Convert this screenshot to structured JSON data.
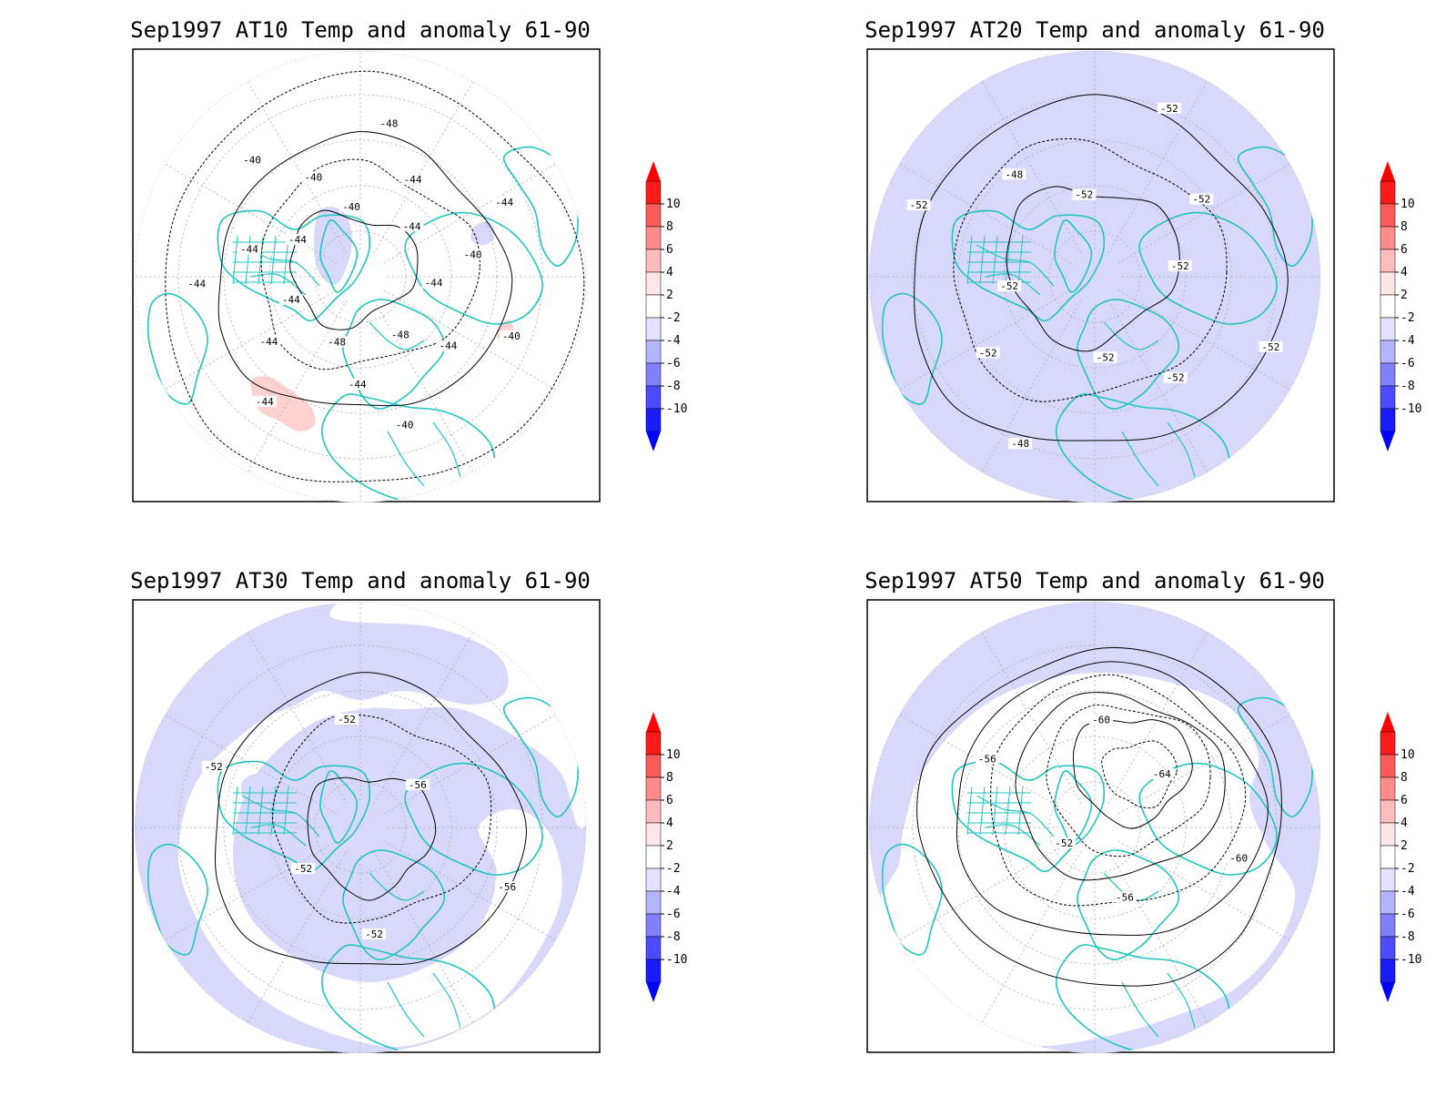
{
  "panels": [
    {
      "title": "Sep1997 AT10 Temp and anomaly 61-90",
      "contour_labels": [
        "-40",
        "-44",
        "-48",
        "-40",
        "-44",
        "-48",
        "-44",
        "-44",
        "-44",
        "-44",
        "-44",
        "-44",
        "-40",
        "-40",
        "-40",
        "-48",
        "-44",
        "-44",
        "-44",
        "-40",
        "-44"
      ],
      "positive_anomaly": true
    },
    {
      "title": "Sep1997 AT20 Temp and anomaly 61-90",
      "contour_labels": [
        "-52",
        "-52",
        "-52",
        "-48",
        "-52",
        "-52",
        "-52",
        "-48",
        "-52",
        "-52",
        "-52",
        "-52"
      ],
      "positive_anomaly": false
    },
    {
      "title": "Sep1997 AT30 Temp and anomaly 61-90",
      "contour_labels": [
        "-56",
        "-52",
        "-52",
        "-52",
        "-52",
        "-56"
      ],
      "positive_anomaly": false
    },
    {
      "title": "Sep1997 AT50 Temp and anomaly 61-90",
      "contour_labels": [
        "-60",
        "-56",
        "-52",
        "-56",
        "-60",
        "-64"
      ],
      "positive_anomaly": false
    }
  ],
  "colorbar": {
    "labels": [
      "10",
      "8",
      "6",
      "4",
      "2",
      "-2",
      "-4",
      "-6",
      "-8",
      "-10"
    ],
    "colors": [
      "#ff1a1a",
      "#ff5a5a",
      "#ff8c8c",
      "#ffbcbc",
      "#ffe6e6",
      "#ffffff",
      "#e2e2ff",
      "#b4b4ff",
      "#8080ff",
      "#4b4bff",
      "#1a1aff"
    ],
    "top_arrow_color": "#ff0000",
    "bottom_arrow_color": "#0000ff"
  },
  "colors": {
    "coast": "#22c4c0",
    "contour": "#000000",
    "neg_anomaly": "#d8d8fa",
    "pos_anomaly": "#ffd2d2"
  }
}
